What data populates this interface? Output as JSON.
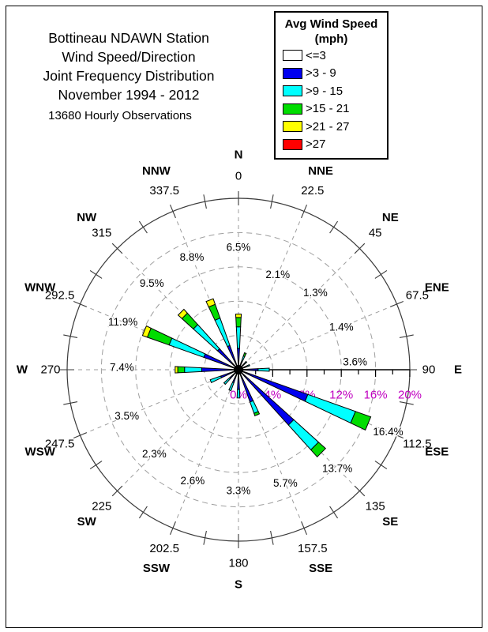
{
  "header": {
    "title_lines": [
      "Bottineau NDAWN Station",
      "Wind Speed/Direction",
      "Joint Frequency Distribution",
      "November 1994 - 2012"
    ],
    "subtitle": "13680 Hourly Observations"
  },
  "legend": {
    "title_lines": [
      "Avg Wind Speed",
      "(mph)"
    ],
    "items": [
      {
        "label": "<=3",
        "color": "#FFFFFF"
      },
      {
        "label": ">3 - 9",
        "color": "#0000F0"
      },
      {
        "label": ">9 - 15",
        "color": "#00FFFF"
      },
      {
        "label": ">15 - 21",
        "color": "#00DD00"
      },
      {
        "label": ">21 - 27",
        "color": "#FFFF00"
      },
      {
        "label": ">27",
        "color": "#FF0000"
      }
    ]
  },
  "chart_data": {
    "type": "bar",
    "subtype": "polar-wind-rose-stacked",
    "title": "Wind Speed/Direction Joint Frequency Distribution",
    "units": "percent of hourly observations",
    "legend_position": "top-right",
    "colors": {
      "radial_label": "#C000C0",
      "grid": "#9e9e9e",
      "outer_ring": "#3a3a3a",
      "axis": "#000000",
      "text": "#000000"
    },
    "radial_axis": {
      "min": 0,
      "max": 20,
      "major_ticks": [
        0,
        4,
        8,
        12,
        16,
        20
      ],
      "major_tick_labels": [
        "0%",
        "4%",
        "8%",
        "12%",
        "16%",
        "20%"
      ],
      "minor_tick_step": 2,
      "grid_circles_pct": [
        4,
        8,
        12,
        16
      ],
      "outer_circle_pct": 20
    },
    "speed_bins": [
      {
        "label": "<=3",
        "color": "#FFFFFF"
      },
      {
        "label": ">3 - 9",
        "color": "#0000F0"
      },
      {
        "label": ">9 - 15",
        "color": "#00FFFF"
      },
      {
        "label": ">15 - 21",
        "color": "#00DD00"
      },
      {
        "label": ">21 - 27",
        "color": "#FFFF00"
      },
      {
        "label": ">27",
        "color": "#FF0000"
      }
    ],
    "directions": [
      {
        "name": "N",
        "degrees": "0",
        "compass_deg": 0,
        "total_label": "6.5%",
        "label_r_pct": 14.3,
        "stack_pct": {
          ">3 - 9": 2.5,
          ">9 - 15": 2.5,
          ">15 - 21": 1.1,
          ">21 - 27": 0.4
        }
      },
      {
        "name": "NNE",
        "degrees": "22.5",
        "compass_deg": 22.5,
        "total_label": "2.1%",
        "label_r_pct": 12.0,
        "stack_pct": {
          ">3 - 9": 0.9,
          ">9 - 15": 0.8,
          ">15 - 21": 0.4
        }
      },
      {
        "name": "NE",
        "degrees": "45",
        "compass_deg": 45,
        "total_label": "1.3%",
        "label_r_pct": 12.7,
        "stack_pct": {
          ">3 - 9": 0.7,
          ">9 - 15": 0.6
        }
      },
      {
        "name": "ENE",
        "degrees": "67.5",
        "compass_deg": 67.5,
        "total_label": "1.4%",
        "label_r_pct": 13.0,
        "stack_pct": {
          ">3 - 9": 0.8,
          ">9 - 15": 0.6
        }
      },
      {
        "name": "E",
        "degrees": "90",
        "compass_deg": 90,
        "total_label": "3.6%",
        "label_r_pct": 13.6,
        "stack_pct": {
          ">3 - 9": 2.3,
          ">9 - 15": 1.3
        }
      },
      {
        "name": "ESE",
        "degrees": "112.5",
        "compass_deg": 112.5,
        "total_label": "16.4%",
        "label_r_pct": 18.9,
        "stack_pct": {
          ">3 - 9": 8.6,
          ">9 - 15": 5.9,
          ">15 - 21": 1.9
        }
      },
      {
        "name": "SE",
        "degrees": "135",
        "compass_deg": 135,
        "total_label": "13.7%",
        "label_r_pct": 16.3,
        "stack_pct": {
          ">3 - 9": 8.7,
          ">9 - 15": 3.9,
          ">15 - 21": 1.1
        }
      },
      {
        "name": "SSE",
        "degrees": "157.5",
        "compass_deg": 157.5,
        "total_label": "5.7%",
        "label_r_pct": 14.3,
        "stack_pct": {
          ">3 - 9": 4.0,
          ">9 - 15": 1.4,
          ">15 - 21": 0.3
        }
      },
      {
        "name": "S",
        "degrees": "180",
        "compass_deg": 180,
        "total_label": "3.3%",
        "label_r_pct": 14.1,
        "stack_pct": {
          ">3 - 9": 2.3,
          ">9 - 15": 1.0
        }
      },
      {
        "name": "SSW",
        "degrees": "202.5",
        "compass_deg": 202.5,
        "total_label": "2.6%",
        "label_r_pct": 14.0,
        "stack_pct": {
          ">3 - 9": 1.6,
          ">9 - 15": 1.0
        }
      },
      {
        "name": "SW",
        "degrees": "225",
        "compass_deg": 225,
        "total_label": "2.3%",
        "label_r_pct": 13.9,
        "stack_pct": {
          ">3 - 9": 1.4,
          ">9 - 15": 0.9
        }
      },
      {
        "name": "WSW",
        "degrees": "247.5",
        "compass_deg": 247.5,
        "total_label": "3.5%",
        "label_r_pct": 14.1,
        "stack_pct": {
          ">3 - 9": 2.2,
          ">9 - 15": 1.3
        }
      },
      {
        "name": "W",
        "degrees": "270",
        "compass_deg": 270,
        "total_label": "7.4%",
        "label_r_pct": 13.6,
        "stack_pct": {
          ">3 - 9": 4.3,
          ">9 - 15": 2.0,
          ">15 - 21": 0.8,
          ">21 - 27": 0.3
        }
      },
      {
        "name": "WNW",
        "degrees": "292.5",
        "compass_deg": 292.5,
        "total_label": "11.9%",
        "label_r_pct": 14.6,
        "stack_pct": {
          ">3 - 9": 4.3,
          ">9 - 15": 4.3,
          ">15 - 21": 2.7,
          ">21 - 27": 0.6
        }
      },
      {
        "name": "NW",
        "degrees": "315",
        "compass_deg": 315,
        "total_label": "9.5%",
        "label_r_pct": 14.3,
        "stack_pct": {
          ">3 - 9": 3.3,
          ">9 - 15": 3.8,
          ">15 - 21": 1.8,
          ">21 - 27": 0.6
        }
      },
      {
        "name": "NNW",
        "degrees": "337.5",
        "compass_deg": 337.5,
        "total_label": "8.8%",
        "label_r_pct": 14.2,
        "stack_pct": {
          ">3 - 9": 3.0,
          ">9 - 15": 3.4,
          ">15 - 21": 1.7,
          ">21 - 27": 0.7
        }
      }
    ]
  }
}
